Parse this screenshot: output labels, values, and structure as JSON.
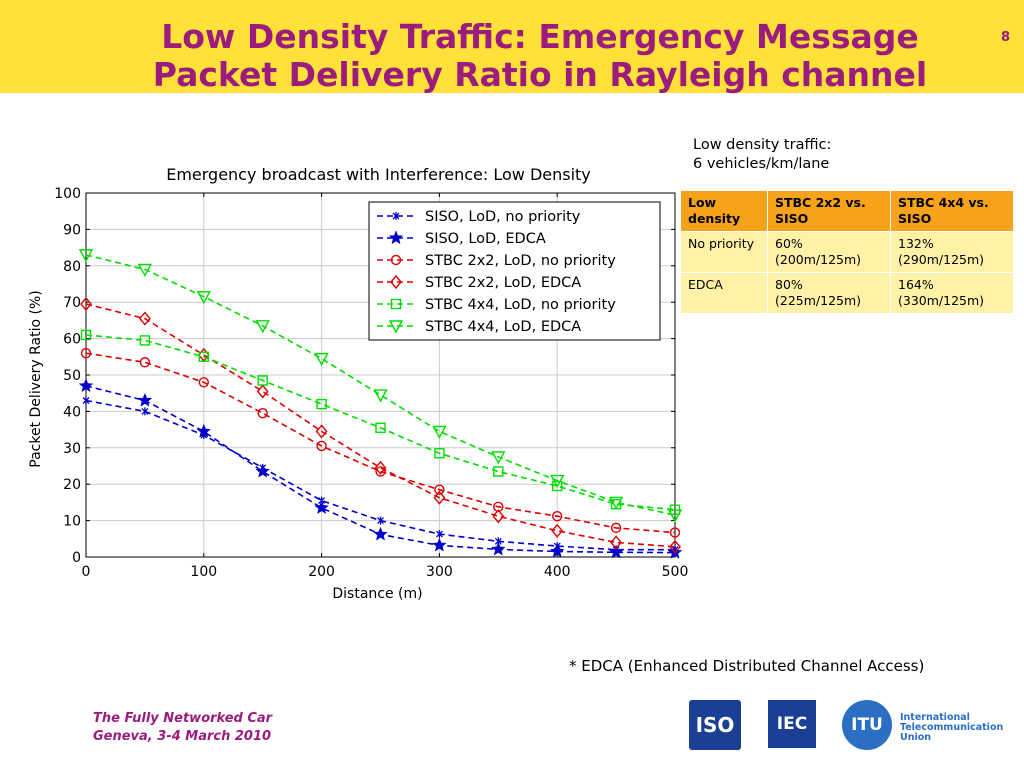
{
  "slide": {
    "title_line1": "Low Density Traffic: Emergency Message",
    "title_line2": "Packet Delivery Ratio in Rayleigh channel",
    "number": "8",
    "note_line1": "Low density traffic:",
    "note_line2": "6 vehicles/km/lane",
    "footnote": "* EDCA (Enhanced Distributed Channel Access)",
    "footer_line1": "The Fully Networked Car",
    "footer_line2": "Geneva, 3-4 March 2010",
    "header_color": "#ffe13a",
    "title_color": "#9b1c7c"
  },
  "table": {
    "headers": [
      "Low density",
      "STBC 2x2 vs. SISO",
      "STBC 4x4 vs. SISO"
    ],
    "rows": [
      [
        "No priority",
        "60% (200m/125m)",
        "132% (290m/125m)"
      ],
      [
        "EDCA",
        "80% (225m/125m)",
        "164% (330m/125m)"
      ]
    ]
  },
  "logos": {
    "iso": "ISO",
    "iec": "IEC",
    "itu": "ITU",
    "itu_text": [
      "International",
      "Telecommunication",
      "Union"
    ]
  },
  "chart_data": {
    "type": "line",
    "title": "Emergency broadcast with Interference: Low Density",
    "xlabel": "Distance (m)",
    "ylabel": "Packet Delivery Ratio (%)",
    "xlim": [
      0,
      500
    ],
    "ylim": [
      0,
      100
    ],
    "xticks": [
      0,
      100,
      200,
      300,
      400,
      500
    ],
    "yticks": [
      0,
      10,
      20,
      30,
      40,
      50,
      60,
      70,
      80,
      90,
      100
    ],
    "grid": true,
    "legend_position": "top-right",
    "x": [
      0,
      50,
      100,
      150,
      200,
      250,
      300,
      350,
      400,
      450,
      500
    ],
    "series": [
      {
        "name": "SISO, LoD, no priority",
        "color": "#0000cc",
        "marker": "x",
        "values": [
          43,
          40,
          33.5,
          24.5,
          15.5,
          10,
          6.3,
          4.3,
          3,
          2,
          2
        ]
      },
      {
        "name": "SISO, LoD, EDCA",
        "color": "#0000cc",
        "marker": "star",
        "values": [
          47,
          43,
          34.5,
          23.5,
          13.5,
          6.2,
          3.2,
          2.1,
          1.5,
          1.3,
          1.2
        ]
      },
      {
        "name": "STBC 2x2, LoD, no priority",
        "color": "#dd0000",
        "marker": "circle",
        "values": [
          56,
          53.5,
          48,
          39.5,
          30.5,
          23.5,
          18.5,
          13.8,
          11.2,
          8,
          6.7
        ]
      },
      {
        "name": "STBC 2x2, LoD, EDCA",
        "color": "#dd0000",
        "marker": "diamond",
        "values": [
          69.5,
          65.5,
          55.5,
          45.5,
          34.5,
          24.5,
          16.3,
          11.2,
          7.2,
          4,
          2.8
        ]
      },
      {
        "name": "STBC 4x4, LoD, no priority",
        "color": "#00dd00",
        "marker": "square",
        "values": [
          61,
          59.5,
          55,
          48.5,
          42,
          35.5,
          28.5,
          23.5,
          19.5,
          14.5,
          13
        ]
      },
      {
        "name": "STBC 4x4, LoD, EDCA",
        "color": "#00dd00",
        "marker": "triangle-down",
        "values": [
          83,
          79,
          71.5,
          63.5,
          54.5,
          44.5,
          34.5,
          27.5,
          21,
          15,
          11.5
        ]
      }
    ]
  }
}
